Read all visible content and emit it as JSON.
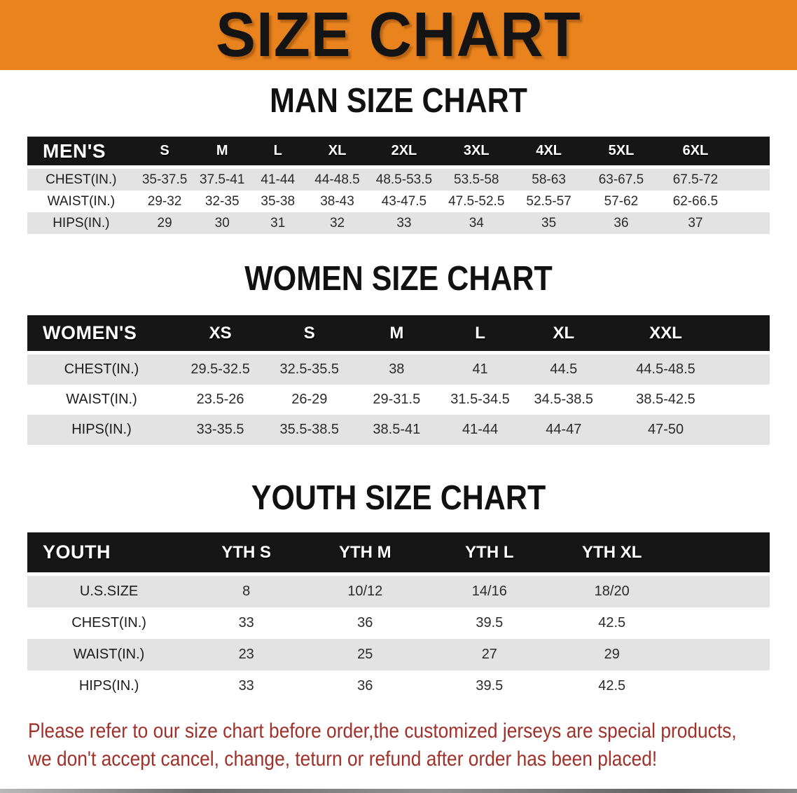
{
  "banner": {
    "title": "SIZE CHART"
  },
  "theme": {
    "banner_bg": "#E8831E",
    "header_bar_bg": "#161616",
    "row_alt_bg": "#E3E3E3",
    "disclaimer_color": "#A0302A"
  },
  "sections": [
    {
      "heading": "MAN SIZE CHART",
      "header": {
        "label": "MEN'S",
        "sizes": [
          "S",
          "M",
          "L",
          "XL",
          "2XL",
          "3XL",
          "4XL",
          "5XL",
          "6XL"
        ]
      },
      "rows": [
        {
          "label": "CHEST(IN.)",
          "values": [
            "35-37.5",
            "37.5-41",
            "41-44",
            "44-48.5",
            "48.5-53.5",
            "53.5-58",
            "58-63",
            "63-67.5",
            "67.5-72"
          ]
        },
        {
          "label": "WAIST(IN.)",
          "values": [
            "29-32",
            "32-35",
            "35-38",
            "38-43",
            "43-47.5",
            "47.5-52.5",
            "52.5-57",
            "57-62",
            "62-66.5"
          ]
        },
        {
          "label": "HIPS(IN.)",
          "values": [
            "29",
            "30",
            "31",
            "32",
            "33",
            "34",
            "35",
            "36",
            "37"
          ]
        }
      ]
    },
    {
      "heading": "WOMEN SIZE CHART",
      "header": {
        "label": "WOMEN'S",
        "sizes": [
          "XS",
          "S",
          "M",
          "L",
          "XL",
          "XXL"
        ]
      },
      "rows": [
        {
          "label": "CHEST(IN.)",
          "values": [
            "29.5-32.5",
            "32.5-35.5",
            "38",
            "41",
            "44.5",
            "44.5-48.5"
          ]
        },
        {
          "label": "WAIST(IN.)",
          "values": [
            "23.5-26",
            "26-29",
            "29-31.5",
            "31.5-34.5",
            "34.5-38.5",
            "38.5-42.5"
          ]
        },
        {
          "label": "HIPS(IN.)",
          "values": [
            "33-35.5",
            "35.5-38.5",
            "38.5-41",
            "41-44",
            "44-47",
            "47-50"
          ]
        }
      ]
    },
    {
      "heading": "YOUTH SIZE CHART",
      "header": {
        "label": "YOUTH",
        "sizes": [
          "YTH S",
          "YTH M",
          "YTH L",
          "YTH XL"
        ]
      },
      "rows": [
        {
          "label": "U.S.SIZE",
          "values": [
            "8",
            "10/12",
            "14/16",
            "18/20"
          ]
        },
        {
          "label": "CHEST(IN.)",
          "values": [
            "33",
            "36",
            "39.5",
            "42.5"
          ]
        },
        {
          "label": "WAIST(IN.)",
          "values": [
            "23",
            "25",
            "27",
            "29"
          ]
        },
        {
          "label": "HIPS(IN.)",
          "values": [
            "33",
            "36",
            "39.5",
            "42.5"
          ]
        }
      ]
    }
  ],
  "disclaimer": {
    "line1": "Please refer to our size chart before order,the customized jerseys are special products,",
    "line2": "we don't accept cancel, change, teturn or refund after order has been placed!"
  }
}
